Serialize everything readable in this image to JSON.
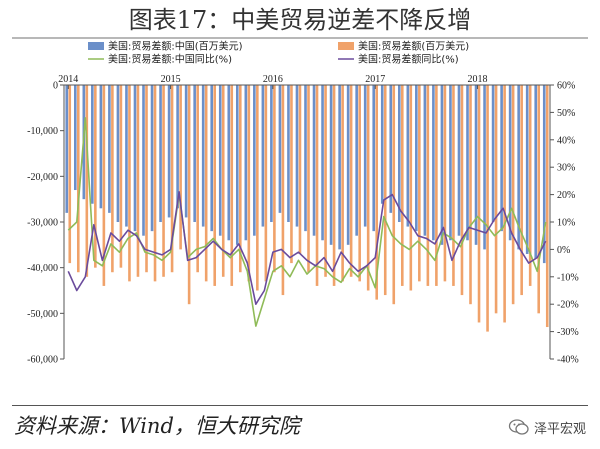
{
  "page": {
    "title": "图表17：中美贸易逆差不降反增",
    "source": "资料来源：Wind，恒大研究院",
    "brand": "泽平宏观"
  },
  "chart_data": {
    "type": "bar+line",
    "title": "图表17：中美贸易逆差不降反增",
    "x_ticks": [
      "2014",
      "2015",
      "2016",
      "2017",
      "2018"
    ],
    "n_periods": 57,
    "y_left_ticks": [
      "0",
      "-10,000",
      "-20,000",
      "-30,000",
      "-40,000",
      "-50,000",
      "-60,000"
    ],
    "y_left_range": [
      -60000,
      0
    ],
    "y_right_ticks": [
      "60%",
      "50%",
      "40%",
      "30%",
      "20%",
      "10%",
      "0%",
      "-10%",
      "-20%",
      "-30%",
      "-40%"
    ],
    "y_right_range": [
      -40,
      60
    ],
    "grid": false,
    "legend_position": "top",
    "colors": {
      "china_balance": "#6b8fc9",
      "us_balance": "#f0a26a",
      "china_yoy": "#8fbb58",
      "us_yoy": "#6a4b9c"
    },
    "series": [
      {
        "name": "美国:贸易差额:中国(百万美元)",
        "axis": "left",
        "kind": "bar",
        "values": [
          -28000,
          -23000,
          -25000,
          -26000,
          -27000,
          -28000,
          -30000,
          -31000,
          -32000,
          -33000,
          -32000,
          -30000,
          -29000,
          -27000,
          -29000,
          -30000,
          -31000,
          -32000,
          -33000,
          -34000,
          -35000,
          -34000,
          -33000,
          -31000,
          -30000,
          -28000,
          -30000,
          -31000,
          -32000,
          -33000,
          -34000,
          -35000,
          -36000,
          -35000,
          -33000,
          -31000,
          -32000,
          -26000,
          -28000,
          -30000,
          -31000,
          -32000,
          -33000,
          -34000,
          -35000,
          -34000,
          -33000,
          -34000,
          -35000,
          -36000,
          -30000,
          -32000,
          -34000,
          -36000,
          -37000,
          -38000,
          -39000
        ]
      },
      {
        "name": "美国:贸易差额(百万美元)",
        "axis": "left",
        "kind": "bar",
        "values": [
          -39000,
          -41000,
          -42000,
          -40000,
          -44000,
          -41000,
          -40000,
          -43000,
          -42000,
          -41000,
          -43000,
          -42000,
          -41000,
          -36000,
          -48000,
          -41000,
          -43000,
          -44000,
          -42000,
          -44000,
          -41000,
          -43000,
          -45000,
          -43000,
          -41000,
          -46000,
          -39000,
          -37000,
          -41000,
          -44000,
          -42000,
          -44000,
          -43000,
          -42000,
          -43000,
          -45000,
          -47000,
          -46000,
          -48000,
          -44000,
          -45000,
          -43000,
          -44000,
          -44000,
          -43000,
          -44000,
          -46000,
          -48000,
          -52000,
          -54000,
          -50000,
          -52000,
          -48000,
          -46000,
          -44000,
          -50000,
          -53000
        ]
      },
      {
        "name": "美国:贸易差额:中国同比(%)",
        "axis": "right",
        "kind": "line",
        "values": [
          7,
          10,
          48,
          -4,
          -6,
          2,
          -1,
          4,
          6,
          -1,
          -2,
          -4,
          -1,
          20,
          -3,
          0,
          1,
          4,
          0,
          -3,
          0,
          -8,
          -28,
          -18,
          -8,
          -6,
          -10,
          -4,
          -9,
          -6,
          -7,
          -10,
          -12,
          -7,
          -10,
          -6,
          -14,
          12,
          5,
          2,
          0,
          3,
          0,
          -4,
          6,
          4,
          1,
          8,
          12,
          9,
          5,
          8,
          15,
          7,
          0,
          -8,
          10
        ]
      },
      {
        "name": "美国:贸易差额同比(%)",
        "axis": "right",
        "kind": "line",
        "values": [
          -8,
          -15,
          -10,
          9,
          -4,
          6,
          3,
          7,
          5,
          0,
          -1,
          -2,
          0,
          21,
          -4,
          -3,
          0,
          3,
          0,
          -2,
          2,
          -5,
          -20,
          -15,
          -1,
          0,
          -3,
          -1,
          -4,
          -6,
          -3,
          -8,
          -1,
          -5,
          -8,
          -6,
          -3,
          18,
          20,
          14,
          10,
          5,
          4,
          2,
          8,
          -4,
          3,
          8,
          7,
          6,
          11,
          15,
          6,
          0,
          -5,
          -3,
          3
        ]
      }
    ]
  }
}
